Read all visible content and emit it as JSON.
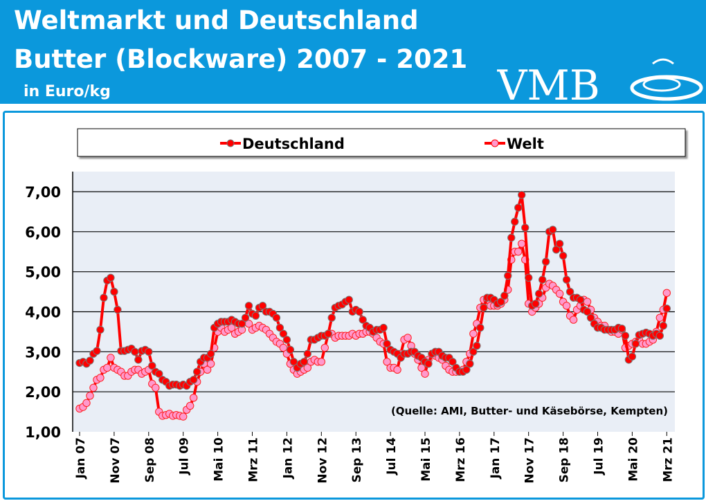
{
  "header": {
    "title_line1": "Weltmarkt und Deutschland",
    "title_line2": "Butter (Blockware) 2007 - 2021",
    "unit": "in Euro/kg",
    "logo_text": "VMB",
    "background_color": "#0b98dc"
  },
  "chart_data": {
    "type": "line",
    "title": "Weltmarkt und Deutschland Butter (Blockware) 2007 - 2021",
    "ylabel": "in Euro/kg",
    "ylim": [
      1,
      7
    ],
    "yticks": [
      "1,00",
      "2,00",
      "3,00",
      "4,00",
      "5,00",
      "6,00",
      "7,00"
    ],
    "ytick_values": [
      1,
      2,
      3,
      4,
      5,
      6,
      7
    ],
    "x_period": {
      "start": "2007-01",
      "end": "2021-03",
      "frequency": "monthly"
    },
    "xtick_labels": [
      "Jan 07",
      "Nov 07",
      "Sep 08",
      "Jul 09",
      "Mai 10",
      "Mrz 11",
      "Jan 12",
      "Nov 12",
      "Sep 13",
      "Jul 14",
      "Mai 15",
      "Mrz 16",
      "Jan 17",
      "Nov 17",
      "Sep 18",
      "Jul 19",
      "Mai 20",
      "Mrz 21"
    ],
    "grid": true,
    "legend_position": "top",
    "annotation": "(Quelle: AMI, Butter- und Käsebörse, Kempten)",
    "series": [
      {
        "name": "Deutschland",
        "color": "#ff0000",
        "marker_color": "#ff0000",
        "values": [
          2.72,
          2.75,
          2.7,
          2.78,
          2.95,
          3.02,
          3.55,
          4.35,
          4.78,
          4.85,
          4.5,
          4.05,
          3.02,
          3.02,
          3.05,
          3.08,
          3.0,
          2.8,
          3.02,
          3.05,
          3.0,
          2.65,
          2.5,
          2.45,
          2.3,
          2.25,
          2.15,
          2.18,
          2.18,
          2.15,
          2.18,
          2.15,
          2.25,
          2.3,
          2.5,
          2.75,
          2.85,
          2.85,
          2.95,
          3.6,
          3.7,
          3.75,
          3.75,
          3.75,
          3.8,
          3.75,
          3.7,
          3.7,
          3.85,
          4.15,
          3.95,
          3.9,
          4.1,
          4.15,
          4.0,
          4.0,
          3.95,
          3.85,
          3.6,
          3.45,
          3.3,
          3.05,
          2.75,
          2.6,
          2.7,
          2.75,
          2.95,
          3.3,
          3.3,
          3.35,
          3.4,
          3.4,
          3.45,
          3.85,
          4.1,
          4.15,
          4.18,
          4.25,
          4.3,
          4.0,
          4.05,
          4.0,
          3.8,
          3.65,
          3.6,
          3.5,
          3.55,
          3.55,
          3.6,
          3.2,
          3.05,
          3.0,
          2.95,
          2.85,
          2.95,
          2.95,
          3.0,
          3.0,
          2.9,
          2.85,
          2.75,
          2.7,
          2.95,
          3.0,
          3.0,
          2.9,
          2.85,
          2.85,
          2.75,
          2.6,
          2.5,
          2.5,
          2.55,
          2.7,
          3.0,
          3.15,
          3.6,
          4.1,
          4.35,
          4.35,
          4.3,
          4.2,
          4.25,
          4.4,
          4.9,
          5.85,
          6.25,
          6.6,
          6.92,
          6.1,
          4.85,
          4.15,
          4.2,
          4.45,
          4.8,
          5.25,
          6.0,
          6.05,
          5.55,
          5.7,
          5.4,
          4.8,
          4.5,
          4.35,
          4.35,
          4.3,
          4.05,
          4.0,
          3.85,
          3.7,
          3.6,
          3.6,
          3.55,
          3.55,
          3.55,
          3.55,
          3.6,
          3.58,
          3.4,
          2.8,
          2.88,
          3.2,
          3.42,
          3.45,
          3.48,
          3.45,
          3.4,
          3.45,
          3.4,
          3.65,
          4.08
        ]
      },
      {
        "name": "Welt",
        "color": "#ff0000",
        "marker_color": "#ff99cc",
        "values": [
          1.58,
          1.62,
          1.72,
          1.9,
          2.1,
          2.3,
          2.35,
          2.55,
          2.6,
          2.85,
          2.6,
          2.55,
          2.5,
          2.4,
          2.4,
          2.5,
          2.55,
          2.55,
          2.45,
          2.5,
          2.55,
          2.2,
          2.1,
          1.5,
          1.4,
          1.42,
          1.45,
          1.4,
          1.42,
          1.4,
          1.38,
          1.55,
          1.65,
          1.85,
          2.25,
          2.5,
          2.7,
          2.55,
          2.7,
          3.1,
          3.5,
          3.6,
          3.5,
          3.55,
          3.6,
          3.45,
          3.5,
          3.55,
          3.75,
          3.7,
          3.55,
          3.6,
          3.65,
          3.6,
          3.55,
          3.45,
          3.35,
          3.25,
          3.2,
          3.1,
          2.95,
          2.7,
          2.55,
          2.45,
          2.5,
          2.55,
          2.6,
          2.75,
          2.8,
          2.75,
          2.75,
          3.1,
          3.45,
          3.45,
          3.35,
          3.4,
          3.4,
          3.4,
          3.4,
          3.45,
          3.4,
          3.45,
          3.45,
          3.5,
          3.5,
          3.45,
          3.35,
          3.25,
          3.2,
          2.75,
          2.6,
          2.6,
          2.55,
          2.95,
          3.3,
          3.35,
          3.15,
          2.95,
          2.8,
          2.6,
          2.45,
          2.8,
          2.95,
          2.9,
          2.85,
          2.8,
          2.65,
          2.55,
          2.5,
          2.5,
          2.5,
          2.55,
          2.75,
          2.95,
          3.45,
          3.7,
          4.1,
          4.3,
          4.3,
          4.15,
          4.15,
          4.15,
          4.2,
          4.3,
          4.55,
          5.3,
          5.5,
          5.5,
          5.7,
          5.3,
          4.2,
          4.0,
          4.1,
          4.2,
          4.35,
          4.6,
          4.7,
          4.65,
          4.55,
          4.45,
          4.25,
          4.15,
          3.9,
          3.8,
          4.05,
          4.15,
          4.3,
          4.25,
          4.05,
          3.85,
          3.75,
          3.65,
          3.65,
          3.55,
          3.5,
          3.5,
          3.45,
          3.55,
          3.1,
          3.15,
          3.2,
          3.25,
          3.3,
          3.2,
          3.2,
          3.25,
          3.3,
          3.5,
          3.85,
          4.05,
          4.47
        ]
      }
    ]
  }
}
